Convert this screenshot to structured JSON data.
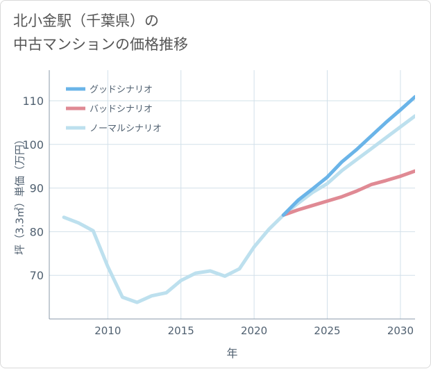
{
  "header": {
    "title_line1": "北小金駅（千葉県）の",
    "title_line2": "中古マンションの価格推移"
  },
  "chart_data": {
    "type": "line",
    "xlabel": "年",
    "ylabel": "坪（3.3㎡）単価（万円）",
    "xlim": [
      2006,
      2031
    ],
    "ylim": [
      60,
      117
    ],
    "xticks": [
      2010,
      2015,
      2020,
      2025,
      2030
    ],
    "yticks": [
      70,
      80,
      90,
      100,
      110
    ],
    "grid": true,
    "legend_position": "top-left",
    "series": [
      {
        "name": "グッドシナリオ",
        "color": "#6ab4e8",
        "x": [
          2022,
          2023,
          2024,
          2025,
          2026,
          2027,
          2028,
          2029,
          2030,
          2031
        ],
        "y": [
          83.8,
          87.2,
          89.8,
          92.5,
          96.0,
          98.8,
          101.9,
          105.0,
          107.9,
          110.9
        ]
      },
      {
        "name": "バッドシナリオ",
        "color": "#e08a94",
        "x": [
          2022,
          2023,
          2024,
          2025,
          2026,
          2027,
          2028,
          2029,
          2030,
          2031
        ],
        "y": [
          83.8,
          85.0,
          86.0,
          87.0,
          88.0,
          89.3,
          90.8,
          91.7,
          92.7,
          93.9
        ]
      },
      {
        "name": "ノーマルシナリオ",
        "color": "#bde0ee",
        "x": [
          2007,
          2008,
          2009,
          2010,
          2011,
          2012,
          2013,
          2014,
          2015,
          2016,
          2017,
          2018,
          2019,
          2020,
          2021,
          2022,
          2023,
          2024,
          2025,
          2026,
          2027,
          2028,
          2029,
          2030,
          2031
        ],
        "y": [
          83.3,
          82.0,
          80.2,
          72.0,
          65.0,
          63.8,
          65.3,
          66.0,
          68.8,
          70.5,
          71.0,
          69.8,
          71.5,
          76.5,
          80.5,
          83.8,
          86.5,
          89.0,
          91.0,
          94.0,
          96.5,
          99.0,
          101.5,
          104.0,
          106.5
        ]
      }
    ]
  }
}
